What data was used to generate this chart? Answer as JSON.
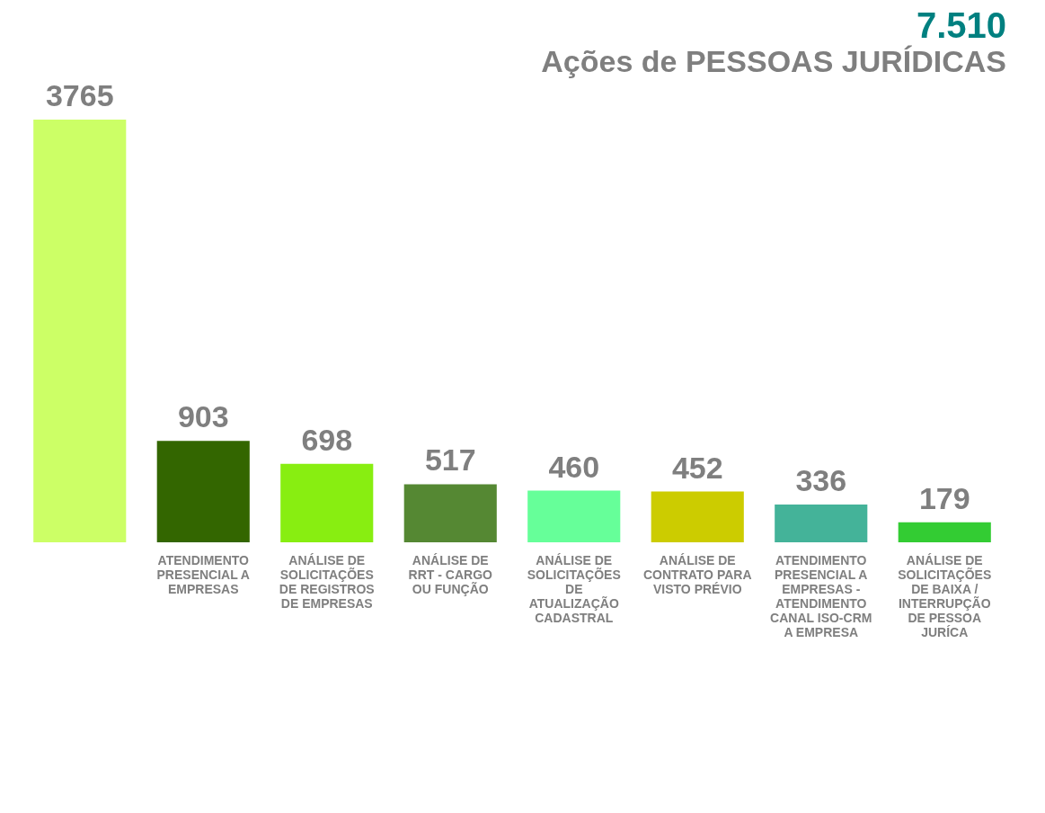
{
  "chart_data": {
    "type": "bar",
    "title": "7.510",
    "subtitle": "Ações de PESSOAS JURÍDICAS",
    "categories": [
      null,
      "ATENDIMENTO PRESENCIAL A EMPRESAS",
      "ANÁLISE DE SOLICITAÇÕES DE REGISTROS DE EMPRESAS",
      "ANÁLISE DE RRT - CARGO OU FUNÇÃO",
      "ANÁLISE DE SOLICITAÇÕES DE ATUALIZAÇÃO CADASTRAL",
      "ANÁLISE DE CONTRATO PARA VISTO PRÉVIO",
      "ATENDIMENTO PRESENCIAL A EMPRESAS - ATENDIMENTO CANAL ISO-CRM A EMPRESA",
      "ANÁLISE DE SOLICITAÇÕES DE BAIXA / INTERRUPÇÃO  DE PESSOA JURÍCA"
    ],
    "values": [
      3765,
      903,
      698,
      517,
      460,
      452,
      336,
      179
    ],
    "colors": [
      "#ccff66",
      "#336600",
      "#88ee11",
      "#558833",
      "#66ff99",
      "#cccc00",
      "#44b399",
      "#33cc33"
    ],
    "data_labels": true
  }
}
